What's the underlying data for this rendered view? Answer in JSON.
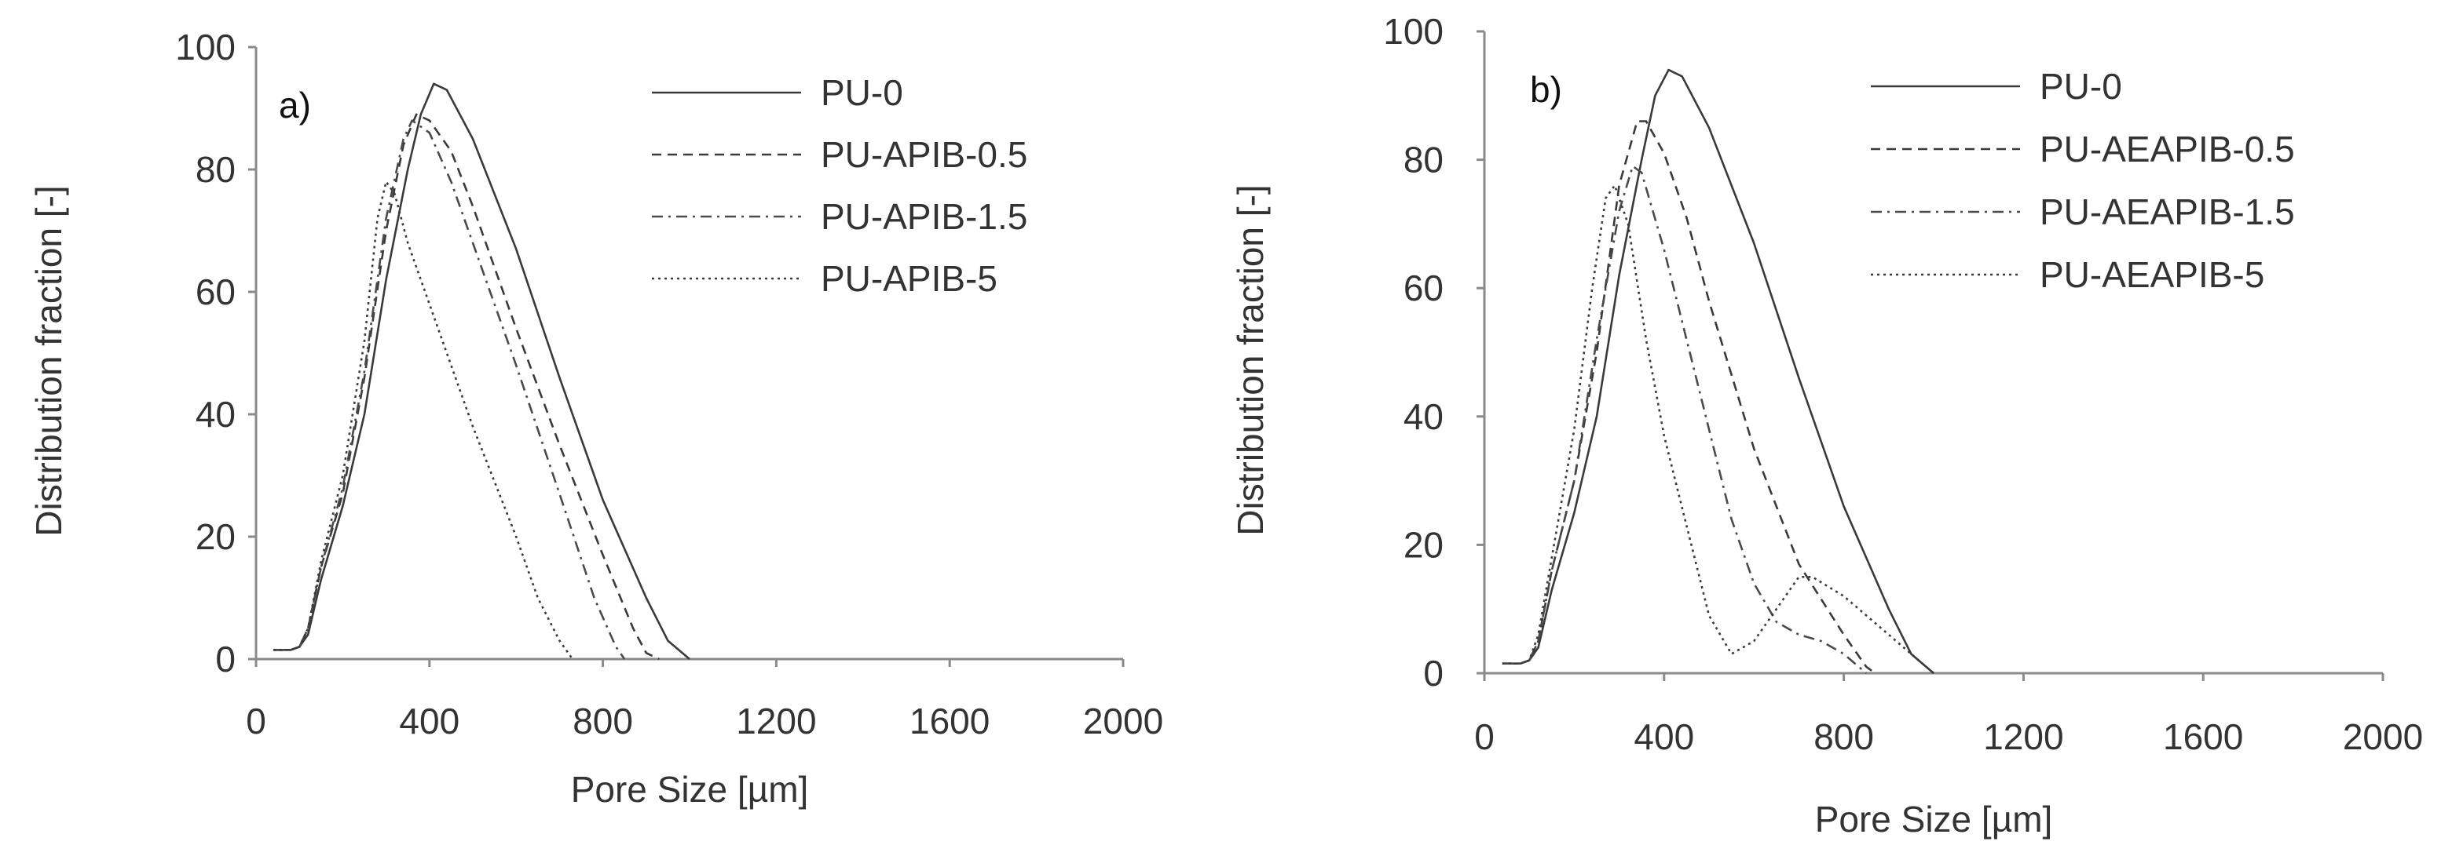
{
  "chart_data": [
    {
      "type": "line",
      "panel_label": "a)",
      "xlabel": "Pore Size [µm]",
      "ylabel": "Distribution fraction [-]",
      "xlim": [
        0,
        2000
      ],
      "ylim": [
        0,
        100
      ],
      "x_ticks": [
        0,
        400,
        800,
        1200,
        1600,
        2000
      ],
      "y_ticks": [
        0,
        20,
        40,
        60,
        80,
        100
      ],
      "grid": false,
      "legend_position": "top-right",
      "series": [
        {
          "name": "PU-0",
          "style": "solid",
          "points": [
            [
              40,
              1.5
            ],
            [
              80,
              1.5
            ],
            [
              100,
              2
            ],
            [
              120,
              4
            ],
            [
              150,
              13
            ],
            [
              200,
              25
            ],
            [
              250,
              40
            ],
            [
              300,
              62
            ],
            [
              350,
              80
            ],
            [
              380,
              89
            ],
            [
              410,
              94
            ],
            [
              440,
              93
            ],
            [
              500,
              85
            ],
            [
              600,
              67
            ],
            [
              700,
              46
            ],
            [
              800,
              26
            ],
            [
              900,
              10
            ],
            [
              950,
              3
            ],
            [
              1000,
              0
            ]
          ]
        },
        {
          "name": "PU-APIB-0.5",
          "style": "dashed",
          "points": [
            [
              40,
              1.5
            ],
            [
              80,
              1.5
            ],
            [
              100,
              2
            ],
            [
              120,
              5
            ],
            [
              150,
              15
            ],
            [
              200,
              27
            ],
            [
              250,
              46
            ],
            [
              300,
              70
            ],
            [
              340,
              84
            ],
            [
              370,
              89
            ],
            [
              400,
              88
            ],
            [
              450,
              83
            ],
            [
              500,
              74
            ],
            [
              600,
              54
            ],
            [
              700,
              35
            ],
            [
              800,
              17
            ],
            [
              870,
              5
            ],
            [
              900,
              1
            ],
            [
              930,
              0
            ]
          ]
        },
        {
          "name": "PU-APIB-1.5",
          "style": "dashdot",
          "points": [
            [
              40,
              1.5
            ],
            [
              80,
              1.5
            ],
            [
              100,
              2
            ],
            [
              120,
              5
            ],
            [
              150,
              15
            ],
            [
              200,
              28
            ],
            [
              250,
              47
            ],
            [
              300,
              72
            ],
            [
              340,
              85
            ],
            [
              360,
              88
            ],
            [
              400,
              86
            ],
            [
              450,
              78
            ],
            [
              500,
              68
            ],
            [
              600,
              48
            ],
            [
              700,
              27
            ],
            [
              780,
              10
            ],
            [
              830,
              2
            ],
            [
              850,
              0
            ]
          ]
        },
        {
          "name": "PU-APIB-5",
          "style": "dotted",
          "points": [
            [
              40,
              1.5
            ],
            [
              80,
              1.5
            ],
            [
              100,
              2
            ],
            [
              120,
              5
            ],
            [
              150,
              16
            ],
            [
              200,
              30
            ],
            [
              250,
              52
            ],
            [
              280,
              72
            ],
            [
              300,
              78
            ],
            [
              320,
              76
            ],
            [
              350,
              68
            ],
            [
              400,
              58
            ],
            [
              450,
              48
            ],
            [
              500,
              38
            ],
            [
              600,
              20
            ],
            [
              650,
              10
            ],
            [
              700,
              3
            ],
            [
              730,
              0
            ]
          ]
        }
      ]
    },
    {
      "type": "line",
      "panel_label": "b)",
      "xlabel": "Pore Size [µm]",
      "ylabel": "Distribution fraction [-]",
      "xlim": [
        0,
        2000
      ],
      "ylim": [
        0,
        100
      ],
      "x_ticks": [
        0,
        400,
        800,
        1200,
        1600,
        2000
      ],
      "y_ticks": [
        0,
        20,
        40,
        60,
        80,
        100
      ],
      "grid": false,
      "legend_position": "top-right",
      "series": [
        {
          "name": "PU-0",
          "style": "solid",
          "points": [
            [
              40,
              1.5
            ],
            [
              80,
              1.5
            ],
            [
              100,
              2
            ],
            [
              120,
              4
            ],
            [
              150,
              13
            ],
            [
              200,
              25
            ],
            [
              250,
              40
            ],
            [
              300,
              62
            ],
            [
              350,
              80
            ],
            [
              380,
              90
            ],
            [
              410,
              94
            ],
            [
              440,
              93
            ],
            [
              500,
              85
            ],
            [
              600,
              67
            ],
            [
              700,
              46
            ],
            [
              800,
              26
            ],
            [
              900,
              10
            ],
            [
              950,
              3
            ],
            [
              1000,
              0
            ]
          ]
        },
        {
          "name": "PU-AEAPIB-0.5",
          "style": "dashed",
          "points": [
            [
              40,
              1.5
            ],
            [
              80,
              1.5
            ],
            [
              100,
              2
            ],
            [
              120,
              5
            ],
            [
              150,
              16
            ],
            [
              200,
              30
            ],
            [
              250,
              50
            ],
            [
              300,
              76
            ],
            [
              340,
              86
            ],
            [
              360,
              86
            ],
            [
              400,
              81
            ],
            [
              450,
              71
            ],
            [
              500,
              58
            ],
            [
              600,
              35
            ],
            [
              700,
              17
            ],
            [
              800,
              6
            ],
            [
              850,
              1
            ],
            [
              870,
              0
            ]
          ]
        },
        {
          "name": "PU-AEAPIB-1.5",
          "style": "dashdot",
          "points": [
            [
              40,
              1.5
            ],
            [
              80,
              1.5
            ],
            [
              100,
              2
            ],
            [
              120,
              5
            ],
            [
              150,
              16
            ],
            [
              200,
              30
            ],
            [
              250,
              52
            ],
            [
              300,
              72
            ],
            [
              330,
              79
            ],
            [
              350,
              78
            ],
            [
              400,
              66
            ],
            [
              450,
              52
            ],
            [
              500,
              38
            ],
            [
              550,
              24
            ],
            [
              600,
              14
            ],
            [
              650,
              8
            ],
            [
              700,
              6
            ],
            [
              750,
              5
            ],
            [
              800,
              3
            ],
            [
              850,
              0
            ]
          ]
        },
        {
          "name": "PU-AEAPIB-5",
          "style": "dotted",
          "points": [
            [
              40,
              1.5
            ],
            [
              80,
              1.5
            ],
            [
              100,
              2
            ],
            [
              120,
              6
            ],
            [
              150,
              18
            ],
            [
              200,
              38
            ],
            [
              240,
              60
            ],
            [
              270,
              74
            ],
            [
              290,
              76
            ],
            [
              320,
              70
            ],
            [
              360,
              52
            ],
            [
              400,
              37
            ],
            [
              450,
              23
            ],
            [
              500,
              9
            ],
            [
              550,
              3
            ],
            [
              600,
              5
            ],
            [
              650,
              10
            ],
            [
              700,
              15
            ],
            [
              730,
              15
            ],
            [
              800,
              12
            ],
            [
              900,
              6
            ],
            [
              950,
              3
            ],
            [
              1000,
              0
            ]
          ]
        }
      ]
    }
  ]
}
